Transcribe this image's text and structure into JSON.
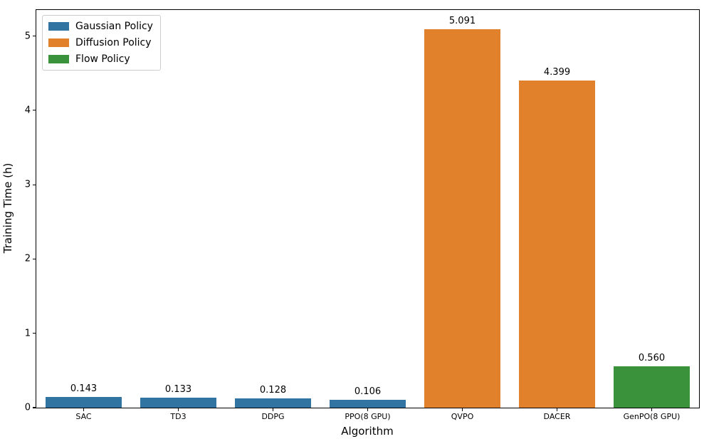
{
  "chart_data": {
    "type": "bar",
    "title": "",
    "xlabel": "Algorithm",
    "ylabel": "Training Time (h)",
    "categories": [
      "SAC",
      "TD3",
      "DDPG",
      "PPO(8 GPU)",
      "QVPO",
      "DACER",
      "GenPO(8 GPU)"
    ],
    "values": [
      0.143,
      0.133,
      0.128,
      0.106,
      5.091,
      4.399,
      0.56
    ],
    "value_labels": [
      "0.143",
      "0.133",
      "0.128",
      "0.106",
      "5.091",
      "4.399",
      "0.560"
    ],
    "groups": [
      "gaussian",
      "gaussian",
      "gaussian",
      "gaussian",
      "diffusion",
      "diffusion",
      "flow"
    ],
    "group_colors": {
      "gaussian": "#3274a1",
      "diffusion": "#e1812c",
      "flow": "#3a923a"
    },
    "yticks": [
      0,
      1,
      2,
      3,
      4,
      5
    ],
    "ylim": [
      0,
      5.35
    ],
    "bar_width_fraction": 0.8,
    "grid": false,
    "legend": {
      "position": "upper-left",
      "entries": [
        {
          "label": "Gaussian Policy",
          "color": "#3274a1"
        },
        {
          "label": "Diffusion Policy",
          "color": "#e1812c"
        },
        {
          "label": "Flow Policy",
          "color": "#3a923a"
        }
      ]
    },
    "spine_color": "#000000"
  }
}
